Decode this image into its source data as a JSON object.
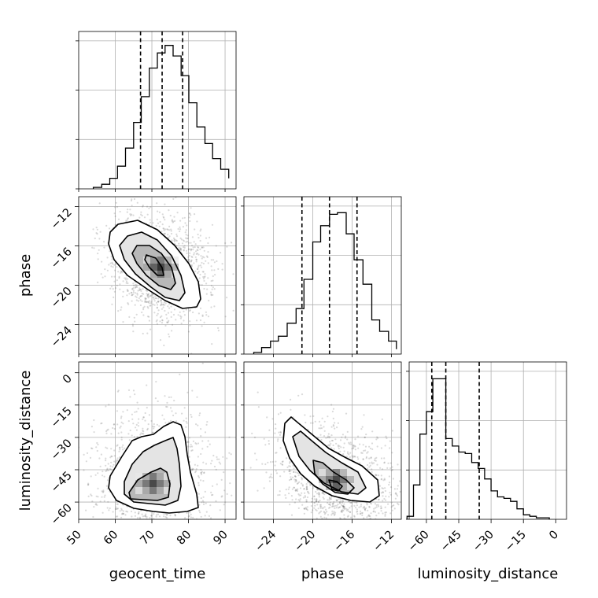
{
  "chart_data": {
    "type": "corner",
    "parameters": [
      "geocent_time",
      "phase",
      "luminosity_distance"
    ],
    "axis_labels": {
      "geocent_time": "geocent_time",
      "phase": "phase",
      "luminosity_distance": "luminosity_distance"
    },
    "ranges": {
      "geocent_time": [
        50,
        93
      ],
      "phase": [
        -27,
        -11
      ],
      "luminosity_distance": [
        -68,
        5
      ]
    },
    "ticks": {
      "geocent_time": [
        50,
        60,
        70,
        80,
        90
      ],
      "phase": [
        -24,
        -20,
        -16,
        -12
      ],
      "luminosity_distance": [
        -60,
        -45,
        -30,
        -15,
        0
      ]
    },
    "tick_labels": {
      "geocent_time": [
        "50",
        "60",
        "70",
        "80",
        "90"
      ],
      "phase": [
        "−24",
        "−20",
        "−16",
        "−12"
      ],
      "luminosity_distance": [
        "−60",
        "−45",
        "−30",
        "−15",
        "0"
      ]
    },
    "quantiles": {
      "geocent_time": [
        66.9,
        72.8,
        78.4
      ],
      "phase": [
        -21.1,
        -18.3,
        -15.5
      ],
      "luminosity_distance": [
        -57.5,
        -51.0,
        -35.5
      ]
    },
    "histograms": {
      "geocent_time": {
        "edges": [
          54,
          56.3,
          58.5,
          60.6,
          62.8,
          65,
          67.1,
          69.3,
          71.5,
          73.6,
          75.8,
          78,
          80.1,
          82.3,
          84.5,
          86.6,
          88.8,
          91
        ],
        "counts": [
          0.01,
          0.03,
          0.07,
          0.15,
          0.27,
          0.44,
          0.61,
          0.8,
          0.9,
          0.95,
          0.88,
          0.75,
          0.57,
          0.41,
          0.3,
          0.2,
          0.13,
          0.07
        ]
      },
      "phase": {
        "edges": [
          -26,
          -25.2,
          -24.3,
          -23.5,
          -22.6,
          -21.7,
          -20.9,
          -20,
          -19.2,
          -18.3,
          -17.5,
          -16.6,
          -15.8,
          -14.9,
          -14,
          -13.2,
          -12.3,
          -11.5
        ],
        "counts": [
          0.01,
          0.04,
          0.08,
          0.11,
          0.19,
          0.28,
          0.46,
          0.69,
          0.79,
          0.86,
          0.87,
          0.74,
          0.58,
          0.43,
          0.21,
          0.14,
          0.08,
          0.03
        ]
      },
      "luminosity_distance": {
        "edges": [
          -69,
          -66,
          -63,
          -60,
          -57,
          -54,
          -51,
          -48,
          -45,
          -42,
          -39,
          -36,
          -33,
          -30,
          -27,
          -24,
          -21,
          -18,
          -15,
          -12,
          -9,
          -6,
          -3
        ],
        "counts": [
          0.02,
          0.23,
          0.57,
          0.72,
          0.94,
          0.94,
          0.54,
          0.49,
          0.45,
          0.44,
          0.38,
          0.34,
          0.27,
          0.19,
          0.15,
          0.14,
          0.12,
          0.07,
          0.03,
          0.02,
          0.01,
          0.01
        ]
      }
    },
    "scatter_density": {
      "geocent_time-phase": {
        "mean": [
          72.5,
          -18.3
        ],
        "std": [
          6.0,
          2.8
        ],
        "corr": -0.65
      },
      "geocent_time-luminosity_distance": {
        "mean": [
          72.5,
          -45
        ],
        "std": [
          6.0,
          10.0
        ],
        "corr": 0.05
      },
      "phase-luminosity_distance": {
        "mean": [
          -18.3,
          -45
        ],
        "std": [
          2.8,
          10.0
        ],
        "corr": -0.6
      }
    },
    "grid": true
  }
}
